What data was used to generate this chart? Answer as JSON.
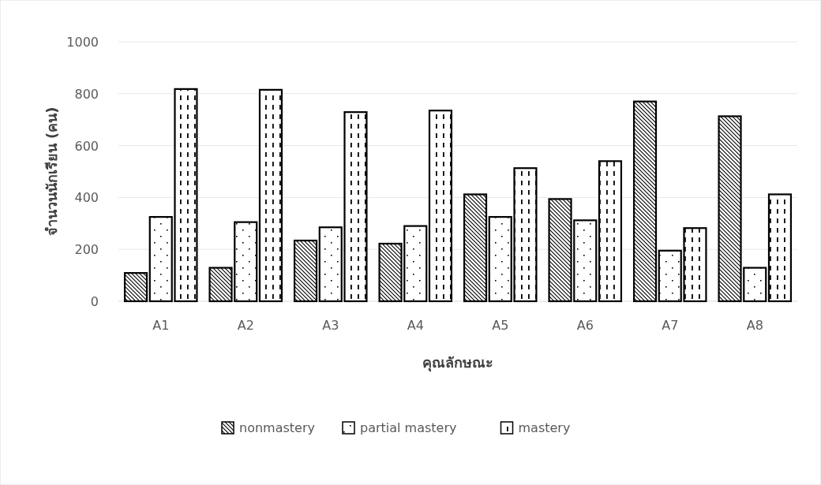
{
  "chart_data": {
    "type": "bar",
    "xlabel": "คุณลักษณะ",
    "ylabel": "จำนวนนักเรียน (คน)",
    "categories": [
      "A1",
      "A2",
      "A3",
      "A4",
      "A5",
      "A6",
      "A7",
      "A8"
    ],
    "series": [
      {
        "name": "nonmastery",
        "color": "#000000",
        "values": [
          109,
          129,
          234,
          222,
          412,
          394,
          770,
          713
        ]
      },
      {
        "name": "partial mastery",
        "color": "#000000",
        "values": [
          325,
          305,
          285,
          290,
          325,
          312,
          195,
          129
        ]
      },
      {
        "name": "mastery",
        "color": "#000000",
        "values": [
          818,
          815,
          729,
          735,
          513,
          540,
          282,
          412
        ]
      }
    ],
    "ylim": [
      0,
      1000
    ],
    "yticks": [
      0,
      200,
      400,
      600,
      800,
      1000
    ],
    "grid": "y",
    "legend": "bottom"
  }
}
